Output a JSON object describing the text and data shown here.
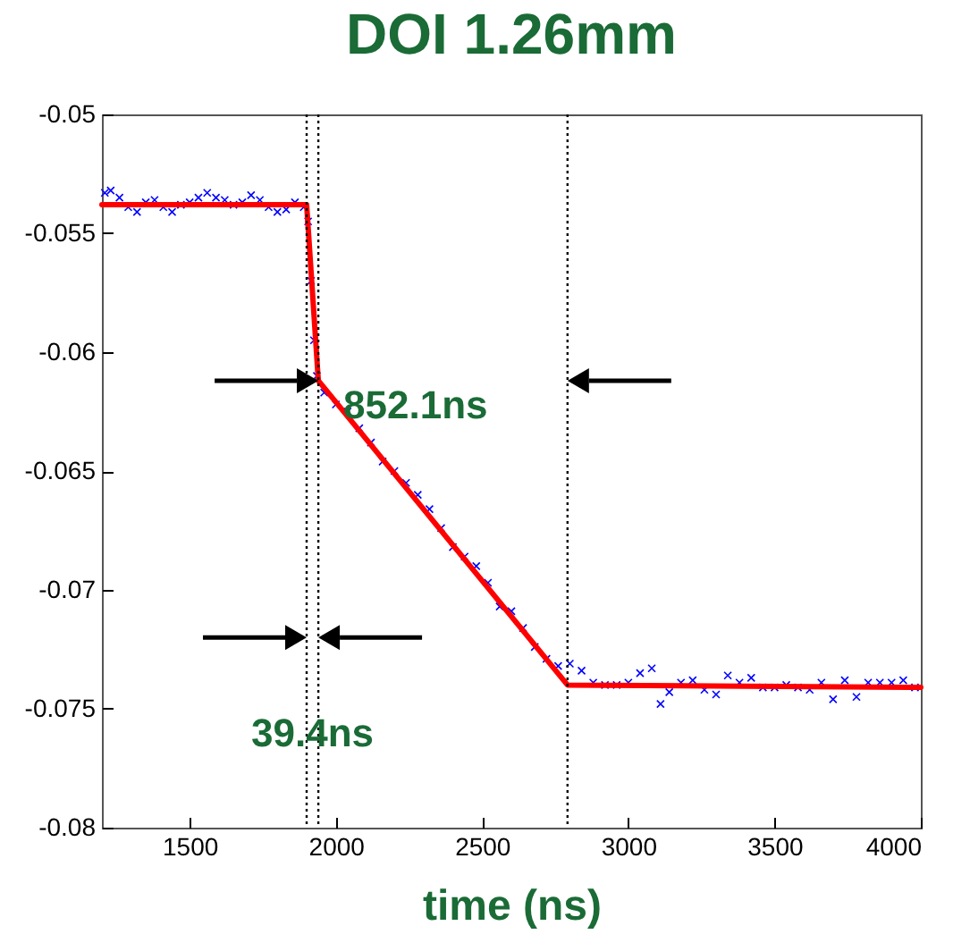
{
  "chart_data": {
    "type": "scatter",
    "title": "DOI 1.26mm",
    "xlabel": "time (ns)",
    "xlim": [
      1200,
      4000
    ],
    "xticks": [
      1500,
      2000,
      2500,
      3000,
      3500,
      4000
    ],
    "ylim": [
      -0.08,
      -0.05
    ],
    "yticks": [
      -0.08,
      -0.075,
      -0.07,
      -0.065,
      -0.06,
      -0.055,
      -0.05
    ],
    "grid": false,
    "series": [
      {
        "marker": "cross",
        "color": "#0000ff",
        "x": [
          1210,
          1230,
          1260,
          1290,
          1320,
          1350,
          1380,
          1410,
          1440,
          1470,
          1500,
          1530,
          1560,
          1590,
          1620,
          1650,
          1680,
          1710,
          1740,
          1770,
          1800,
          1830,
          1860,
          1890,
          1905,
          1915,
          1925,
          1935,
          1960,
          2000,
          2040,
          2080,
          2120,
          2160,
          2200,
          2240,
          2280,
          2320,
          2360,
          2400,
          2440,
          2480,
          2520,
          2560,
          2600,
          2640,
          2680,
          2720,
          2760,
          2800,
          2840,
          2880,
          2920,
          2960,
          3000,
          3040,
          3080,
          3110,
          3140,
          3180,
          3220,
          3260,
          3300,
          3340,
          3380,
          3420,
          3460,
          3500,
          3540,
          3580,
          3620,
          3660,
          3700,
          3740,
          3780,
          3820,
          3860,
          3900,
          3940,
          3980
        ],
        "values": [
          -0.0533,
          -0.0532,
          -0.0535,
          -0.0539,
          -0.0541,
          -0.0537,
          -0.0536,
          -0.0539,
          -0.0541,
          -0.0538,
          -0.0537,
          -0.0535,
          -0.0533,
          -0.0535,
          -0.0536,
          -0.0538,
          -0.0537,
          -0.0534,
          -0.0536,
          -0.0539,
          -0.0541,
          -0.054,
          -0.0537,
          -0.0539,
          -0.0545,
          -0.057,
          -0.0595,
          -0.061,
          -0.0617,
          -0.0622,
          -0.0625,
          -0.0632,
          -0.0638,
          -0.0646,
          -0.065,
          -0.0655,
          -0.066,
          -0.0666,
          -0.0674,
          -0.0682,
          -0.0686,
          -0.069,
          -0.0697,
          -0.0707,
          -0.0709,
          -0.0716,
          -0.0724,
          -0.0729,
          -0.0732,
          -0.0731,
          -0.0734,
          -0.0739,
          -0.074,
          -0.074,
          -0.0739,
          -0.0735,
          -0.0733,
          -0.0748,
          -0.0743,
          -0.0739,
          -0.0738,
          -0.0742,
          -0.0744,
          -0.0736,
          -0.0739,
          -0.0737,
          -0.0741,
          -0.0741,
          -0.074,
          -0.0741,
          -0.0742,
          -0.0739,
          -0.0746,
          -0.0738,
          -0.0745,
          -0.0739,
          -0.0739,
          -0.0739,
          -0.0738,
          -0.0741
        ]
      },
      {
        "type": "line",
        "color": "#ff0000",
        "x": [
          1200,
          1900,
          1940,
          2792,
          4000
        ],
        "values": [
          -0.0538,
          -0.0538,
          -0.0612,
          -0.074,
          -0.0741
        ]
      }
    ],
    "ref_lines": [
      {
        "axis": "x",
        "value": 1900,
        "color": "#000000",
        "line_style": "dotted"
      },
      {
        "axis": "x",
        "value": 1940,
        "color": "#000000",
        "line_style": "dotted"
      },
      {
        "axis": "x",
        "value": 2792,
        "color": "#000000",
        "line_style": "dotted"
      }
    ],
    "annotations": [
      {
        "text": "852.1ns",
        "x": 1940,
        "y": -0.0612
      },
      {
        "text": "39.4ns",
        "x": 1920,
        "y": -0.072
      }
    ]
  }
}
